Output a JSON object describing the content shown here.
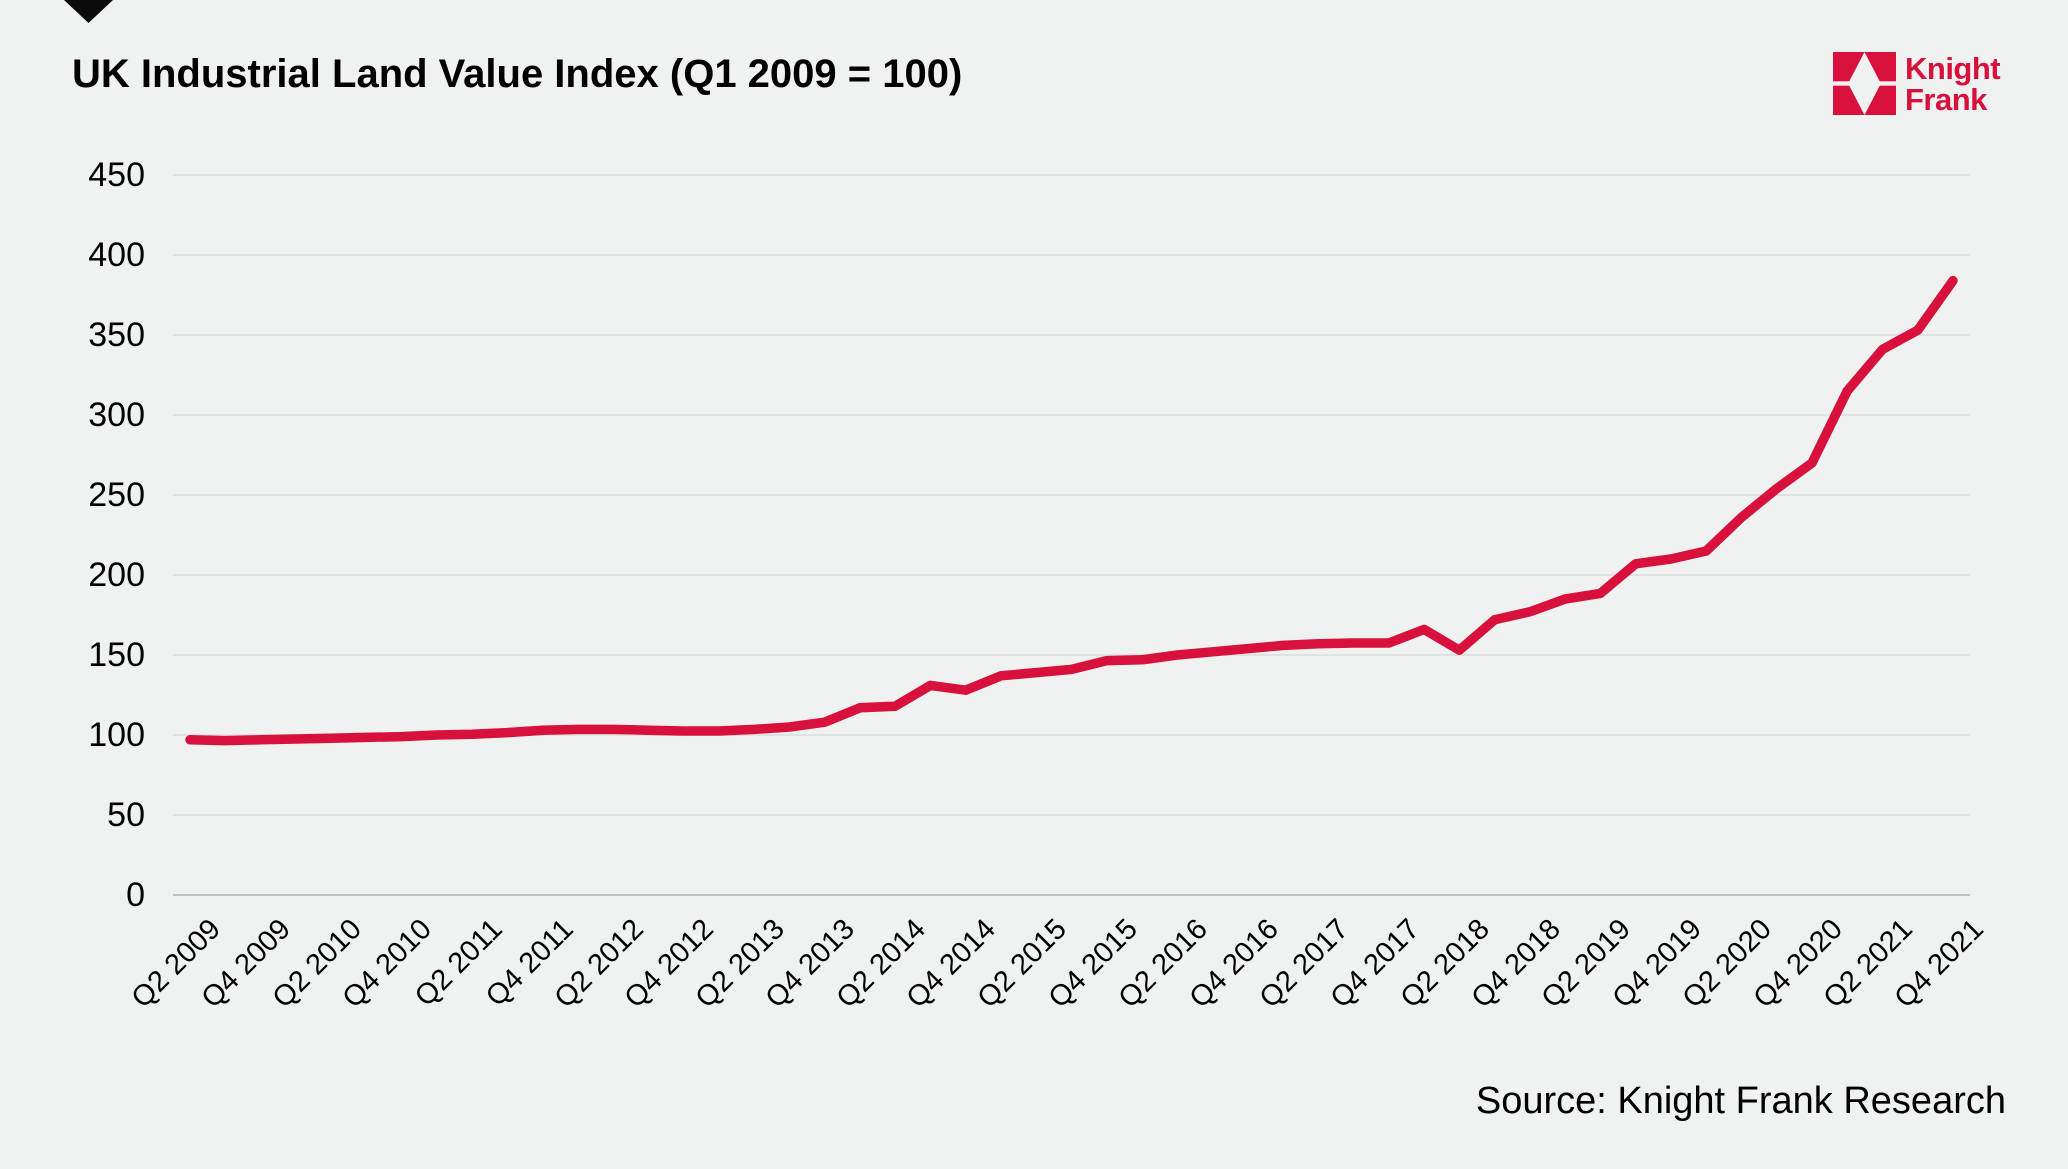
{
  "header": {
    "title": "UK Industrial Land Value Index (Q1 2009 = 100)",
    "logo": {
      "line1": "Knight",
      "line2": "Frank"
    }
  },
  "footer": {
    "source": "Source: Knight Frank Research"
  },
  "colors": {
    "accent_red": "#D7113C",
    "background": "#EFF2F0",
    "gridline": "#DEE2E0",
    "zero_axis_line": "#BFC3C1",
    "text": "#000000",
    "marker_black": "#0B0B0B"
  },
  "chart_data": {
    "type": "line",
    "title": "UK Industrial Land Value Index (Q1 2009 = 100)",
    "legend": "none",
    "grid": "horizontal",
    "ylim": [
      0,
      450
    ],
    "yticks": [
      0,
      50,
      100,
      150,
      200,
      250,
      300,
      350,
      400,
      450
    ],
    "x_tick_labels": [
      "Q2 2009",
      "Q4 2009",
      "Q2 2010",
      "Q4 2010",
      "Q2 2011",
      "Q4 2011",
      "Q2 2012",
      "Q4 2012",
      "Q2 2013",
      "Q4 2013",
      "Q2 2014",
      "Q4 2014",
      "Q2 2015",
      "Q4 2015",
      "Q2 2016",
      "Q4 2016",
      "Q2 2017",
      "Q4 2017",
      "Q2 2018",
      "Q4 2018",
      "Q2 2019",
      "Q4 2019",
      "Q2 2020",
      "Q4 2020",
      "Q2 2021",
      "Q4 2021"
    ],
    "series": [
      {
        "name": "UK Industrial Land Value Index",
        "color": "#D7113C",
        "x": [
          "Q2 2009",
          "Q3 2009",
          "Q4 2009",
          "Q1 2010",
          "Q2 2010",
          "Q3 2010",
          "Q4 2010",
          "Q1 2011",
          "Q2 2011",
          "Q3 2011",
          "Q4 2011",
          "Q1 2012",
          "Q2 2012",
          "Q3 2012",
          "Q4 2012",
          "Q1 2013",
          "Q2 2013",
          "Q3 2013",
          "Q4 2013",
          "Q1 2014",
          "Q2 2014",
          "Q3 2014",
          "Q4 2014",
          "Q1 2015",
          "Q2 2015",
          "Q3 2015",
          "Q4 2015",
          "Q1 2016",
          "Q2 2016",
          "Q3 2016",
          "Q4 2016",
          "Q1 2017",
          "Q2 2017",
          "Q3 2017",
          "Q4 2017",
          "Q1 2018",
          "Q2 2018",
          "Q3 2018",
          "Q4 2018",
          "Q1 2019",
          "Q2 2019",
          "Q3 2019",
          "Q4 2019",
          "Q1 2020",
          "Q2 2020",
          "Q3 2020",
          "Q4 2020",
          "Q1 2021",
          "Q2 2021",
          "Q3 2021",
          "Q4 2021"
        ],
        "values": [
          97,
          96.5,
          97,
          97.5,
          98,
          98.5,
          99,
          100,
          100.5,
          101.5,
          103,
          103.5,
          103.5,
          103,
          102.5,
          102.5,
          103.5,
          105,
          108,
          117,
          118,
          131,
          128,
          137,
          139,
          141,
          146.5,
          147,
          150,
          152,
          154,
          156,
          157,
          157.5,
          157.5,
          166,
          153,
          172,
          177,
          185,
          188.5,
          207,
          210,
          215,
          236,
          254,
          270,
          315,
          341,
          353,
          384
        ]
      }
    ]
  }
}
